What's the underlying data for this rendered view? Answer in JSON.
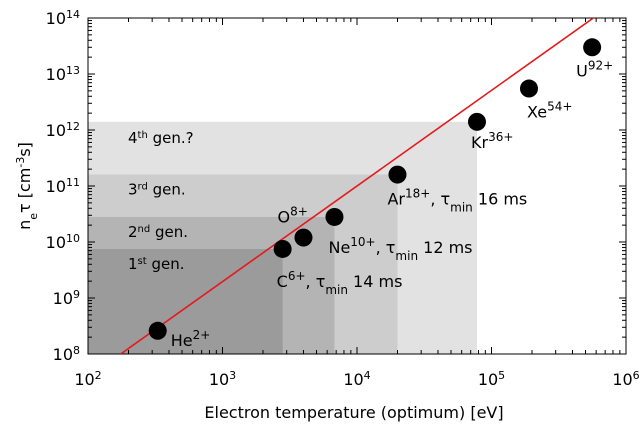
{
  "chart_data": {
    "type": "scatter",
    "title": "",
    "xlabel": "Electron temperature (optimum) [eV]",
    "ylabel": "n_eτ [cm⁻³s]",
    "xscale": "log",
    "yscale": "log",
    "xlim": [
      100,
      1000000
    ],
    "ylim": [
      100000000,
      100000000000000
    ],
    "x_ticks": [
      {
        "value": 100,
        "base": "10",
        "exp": "2"
      },
      {
        "value": 1000,
        "base": "10",
        "exp": "3"
      },
      {
        "value": 10000,
        "base": "10",
        "exp": "4"
      },
      {
        "value": 100000,
        "base": "10",
        "exp": "5"
      },
      {
        "value": 1000000,
        "base": "10",
        "exp": "6"
      }
    ],
    "y_ticks": [
      {
        "value": 100000000,
        "base": "10",
        "exp": "8"
      },
      {
        "value": 1000000000,
        "base": "10",
        "exp": "9"
      },
      {
        "value": 10000000000,
        "base": "10",
        "exp": "10"
      },
      {
        "value": 100000000000,
        "base": "10",
        "exp": "11"
      },
      {
        "value": 1000000000000,
        "base": "10",
        "exp": "12"
      },
      {
        "value": 10000000000000,
        "base": "10",
        "exp": "13"
      },
      {
        "value": 100000000000000,
        "base": "10",
        "exp": "14"
      }
    ],
    "grid": false,
    "trend_line": {
      "color": "#e41a1c",
      "points": [
        [
          175,
          100000000
        ],
        [
          1000000,
          260000000000000
        ]
      ]
    },
    "generations": [
      {
        "label": "1st gen.",
        "base": "1",
        "sup": "st",
        "rest": " gen.",
        "t_max": 2800,
        "net_max": 7500000000,
        "color": "#9b9b9b"
      },
      {
        "label": "2nd gen.",
        "base": "2",
        "sup": "nd",
        "rest": " gen.",
        "t_max": 6800,
        "net_max": 28000000000,
        "color": "#b4b4b4"
      },
      {
        "label": "3rd gen.",
        "base": "3",
        "sup": "rd",
        "rest": " gen.",
        "t_max": 20000,
        "net_max": 160000000000,
        "color": "#cdcdcd"
      },
      {
        "label": "4th gen.?",
        "base": "4",
        "sup": "th",
        "rest": " gen.?",
        "t_max": 78000,
        "net_max": 1400000000000,
        "color": "#e2e2e2"
      }
    ],
    "series": [
      {
        "points": [
          {
            "label": "He2+",
            "ion": "He",
            "charge": "2+",
            "tau_label": "",
            "x": 330,
            "y": 260000000
          },
          {
            "label": "C6+, τmin 14 ms",
            "ion": "C",
            "charge": "6+",
            "tau_label": "14 ms",
            "x": 2800,
            "y": 7500000000
          },
          {
            "label": "O8+",
            "ion": "O",
            "charge": "8+",
            "tau_label": "",
            "x": 4000,
            "y": 12000000000
          },
          {
            "label": "Ne10+, τmin 12 ms",
            "ion": "Ne",
            "charge": "10+",
            "tau_label": "12 ms",
            "x": 6800,
            "y": 28000000000
          },
          {
            "label": "Ar18+, τmin 16 ms",
            "ion": "Ar",
            "charge": "18+",
            "tau_label": "16 ms",
            "x": 20000,
            "y": 160000000000
          },
          {
            "label": "Kr36+",
            "ion": "Kr",
            "charge": "36+",
            "tau_label": "",
            "x": 78000,
            "y": 1400000000000
          },
          {
            "label": "Xe54+",
            "ion": "Xe",
            "charge": "54+",
            "tau_label": "",
            "x": 190000,
            "y": 5500000000000
          },
          {
            "label": "U92+",
            "ion": "U",
            "charge": "92+",
            "tau_label": "",
            "x": 560000,
            "y": 30000000000000
          }
        ]
      }
    ],
    "tau_prefix": ", τ",
    "tau_sub": "min"
  }
}
